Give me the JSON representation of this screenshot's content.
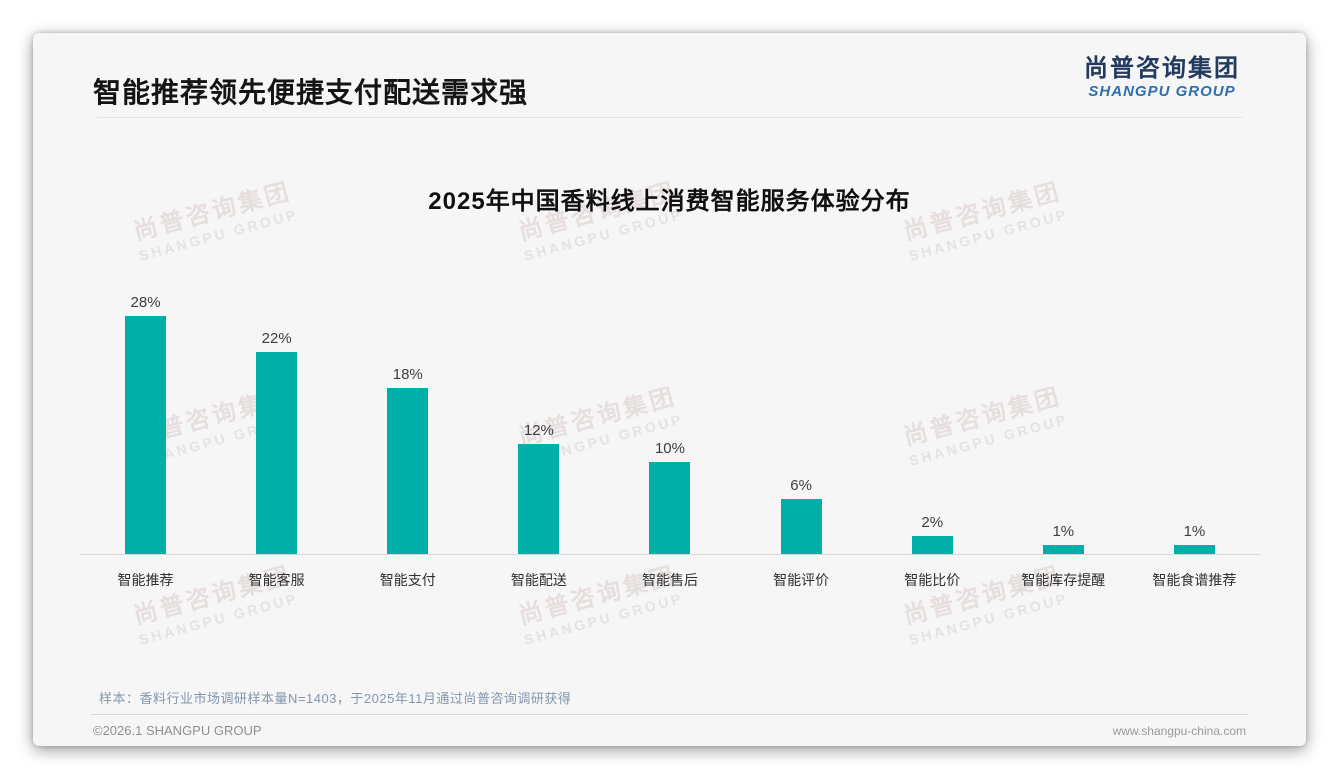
{
  "page": {
    "title": "智能推荐领先便捷支付配送需求强",
    "logo": {
      "cn": "尚普咨询集团",
      "en": "SHANGPU GROUP"
    },
    "watermark": {
      "cn": "尚普咨询集团",
      "en": "SHANGPU GROUP"
    },
    "footnote": "样本：香料行业市场调研样本量N=1403，于2025年11月通过尚普咨询调研获得",
    "footer_left": "©2026.1 SHANGPU GROUP",
    "footer_right": "www.shangpu-china.com"
  },
  "chart_data": {
    "type": "bar",
    "title": "2025年中国香料线上消费智能服务体验分布",
    "categories": [
      "智能推荐",
      "智能客服",
      "智能支付",
      "智能配送",
      "智能售后",
      "智能评价",
      "智能比价",
      "智能库存提醒",
      "智能食谱推荐"
    ],
    "values": [
      28,
      22,
      18,
      12,
      10,
      6,
      2,
      1,
      1
    ],
    "value_labels": [
      "28%",
      "22%",
      "18%",
      "12%",
      "10%",
      "6%",
      "2%",
      "1%",
      "1%"
    ],
    "unit": "%",
    "ylim": [
      0,
      30
    ],
    "grid": false,
    "legend": false,
    "bar_color": "#00b0a8",
    "axis_color": "#d9d9d9"
  },
  "colors": {
    "card_background": "#f6f6f7",
    "title_text": "#141414",
    "logo_cn": "#223a5e",
    "logo_en": "#2e6fae",
    "footnote_text": "#8496ad",
    "bar_teal": "#00b0a8"
  }
}
